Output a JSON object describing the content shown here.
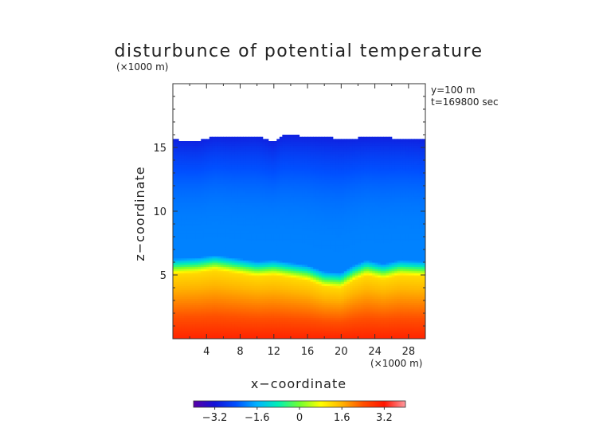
{
  "chart_data": {
    "type": "heatmap",
    "title": "disturbunce of potential temperature",
    "x_unit_note": "(×1000 m)",
    "y_unit_note": "(×1000 m)",
    "xlabel": "x−coordinate",
    "ylabel": "z−coordinate",
    "xlim": [
      0,
      30
    ],
    "ylim": [
      0,
      20
    ],
    "x_ticks": [
      4,
      8,
      12,
      16,
      20,
      24,
      28
    ],
    "x_tick_labels": [
      "4",
      "8",
      "12",
      "16",
      "20",
      "24",
      "28"
    ],
    "y_ticks": [
      5,
      10,
      15
    ],
    "y_tick_labels": [
      "5",
      "10",
      "15"
    ],
    "annotations": [
      "y=100 m",
      "t=169800 sec"
    ],
    "colorbar": {
      "range": [
        -4,
        4
      ],
      "ticks": [
        -3.2,
        -1.6,
        0,
        1.6,
        3.2
      ],
      "tick_labels": [
        "−3.2",
        "−1.6",
        "0",
        "1.6",
        "3.2"
      ],
      "colors": [
        "#5a00a8",
        "#1414d8",
        "#0050ff",
        "#00b4ff",
        "#00f0b4",
        "#70ff30",
        "#ffff00",
        "#ffb400",
        "#ff5000",
        "#ff1400",
        "#ff9aa0"
      ]
    },
    "field": {
      "top_profile": [
        [
          0,
          15.6
        ],
        [
          3,
          15.5
        ],
        [
          5,
          15.9
        ],
        [
          7,
          15.8
        ],
        [
          10,
          15.9
        ],
        [
          12,
          15.4
        ],
        [
          13,
          15.95
        ],
        [
          16,
          15.9
        ],
        [
          20,
          15.7
        ],
        [
          24,
          15.8
        ],
        [
          28,
          15.7
        ],
        [
          30,
          15.6
        ]
      ],
      "inversion_profile": [
        [
          0,
          5.1
        ],
        [
          3,
          5.2
        ],
        [
          5,
          5.4
        ],
        [
          8,
          5.1
        ],
        [
          10,
          4.9
        ],
        [
          12,
          5.0
        ],
        [
          14,
          4.8
        ],
        [
          16,
          4.6
        ],
        [
          18,
          4.1
        ],
        [
          20,
          4.0
        ],
        [
          21.5,
          4.6
        ],
        [
          23,
          5.0
        ],
        [
          25,
          4.7
        ],
        [
          27,
          5.0
        ],
        [
          30,
          4.9
        ]
      ],
      "value_at_top": -3.0,
      "value_aloft": -2.0,
      "value_below_inversion": 1.2,
      "value_at_ground": 3.0
    }
  }
}
